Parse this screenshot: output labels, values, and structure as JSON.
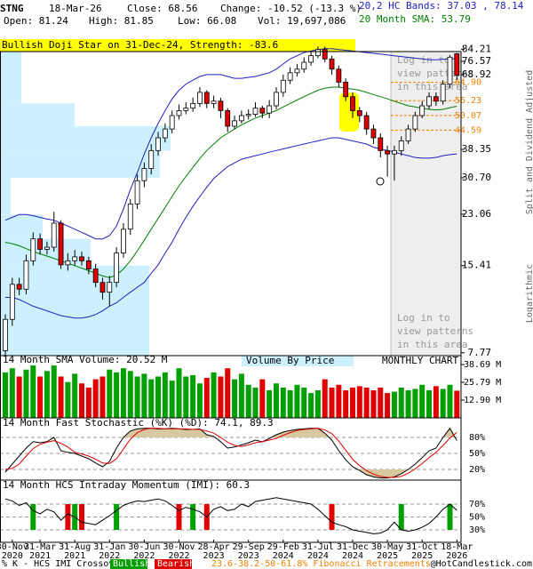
{
  "header": {
    "symbol": "STNG",
    "date": "18-Mar-26",
    "close": "Close: 68.56",
    "change": "Change: -10.52 (-13.3 %)",
    "bands": "20,2 HC Bands: 37.03 , 78.14",
    "open": "Open: 81.24",
    "high": "High: 81.85",
    "low": "Low: 66.08",
    "volume": "Vol: 19,697,086",
    "sma": "20 Month SMA: 53.79",
    "bands_color": "#2020c0",
    "sma_color": "#008000"
  },
  "footer": {
    "credit": "@HotCandlestick.com"
  },
  "chart_data": [
    {
      "type": "candlestick",
      "annotation": "Bullish Doji Star on 31-Dec-24, Strength: -83.6",
      "period": "MONTHLY CHART",
      "y_axis_notes": [
        "Split and Dividend Adjusted",
        "Logarithmic"
      ],
      "pattern_notice": [
        "Log in to",
        "view patterns",
        "in this area"
      ],
      "categories": [
        null,
        "30-Nov",
        null,
        null,
        null,
        "31-Mar",
        null,
        null,
        null,
        null,
        "31-Aug",
        null,
        null,
        null,
        null,
        "31-Jan",
        null,
        null,
        null,
        null,
        "30-Jun",
        null,
        null,
        null,
        null,
        "30-Nov",
        null,
        null,
        null,
        null,
        "28-Apr",
        null,
        null,
        null,
        null,
        "29-Sep",
        null,
        null,
        null,
        null,
        "29-Feb",
        null,
        null,
        null,
        null,
        "31-Jul",
        null,
        null,
        null,
        null,
        "31-Dec",
        null,
        null,
        null,
        null,
        "30-May",
        null,
        null,
        null,
        null,
        "31-Oct",
        null,
        null,
        null,
        null,
        "18-Mar"
      ],
      "category_years": [
        null,
        "2020",
        null,
        null,
        null,
        "2021",
        null,
        null,
        null,
        null,
        "2021",
        null,
        null,
        null,
        null,
        "2022",
        null,
        null,
        null,
        null,
        "2022",
        null,
        null,
        null,
        null,
        "2022",
        null,
        null,
        null,
        null,
        "2023",
        null,
        null,
        null,
        null,
        "2023",
        null,
        null,
        null,
        null,
        "2024",
        null,
        null,
        null,
        null,
        "2024",
        null,
        null,
        null,
        null,
        "2024",
        null,
        null,
        null,
        null,
        "2025",
        null,
        null,
        null,
        null,
        "2025",
        null,
        null,
        null,
        null,
        "2026"
      ],
      "open": [
        7.9,
        10.1,
        13.3,
        12.8,
        16,
        19,
        17.5,
        17.8,
        21.5,
        15.5,
        16,
        16.5,
        16,
        15,
        13.5,
        12.5,
        13.5,
        17,
        20.5,
        25,
        30,
        33,
        38,
        42,
        45,
        50,
        52,
        53,
        55,
        60,
        55,
        56,
        52,
        46,
        48,
        50,
        50.5,
        53,
        51,
        54,
        60,
        66,
        70,
        72,
        76,
        80,
        84,
        78,
        72,
        65,
        58,
        52,
        50,
        45,
        42,
        38,
        37,
        38,
        41,
        45,
        50,
        54,
        58,
        56,
        64,
        81.24
      ],
      "high": [
        10.5,
        14,
        14,
        16.8,
        20,
        19.8,
        18.6,
        23.5,
        22,
        17,
        17.4,
        17.2,
        16.5,
        15.6,
        14,
        14.2,
        17.8,
        21.5,
        26,
        31.5,
        34.6,
        40,
        44,
        47,
        52,
        54.5,
        55.5,
        57.6,
        62.5,
        61,
        58.5,
        57.5,
        53,
        50,
        52,
        52.5,
        55.5,
        54,
        56.5,
        62.5,
        69,
        73,
        75,
        79,
        83,
        86,
        86,
        80,
        74,
        67,
        60,
        53.5,
        51.5,
        46.5,
        43.5,
        39.5,
        39.5,
        42.5,
        46.5,
        51.5,
        56,
        60,
        60,
        66,
        80.5,
        81.85
      ],
      "low": [
        7.6,
        9.6,
        12.2,
        12.3,
        15.4,
        16.8,
        16.8,
        17.2,
        15,
        14.8,
        15.4,
        15.4,
        14.4,
        13,
        11.8,
        11.2,
        13,
        16.4,
        19.6,
        24,
        28.5,
        31.5,
        36.5,
        40.5,
        43.5,
        48.5,
        50.5,
        51.5,
        53.5,
        53,
        53,
        49,
        44,
        45,
        47,
        48.5,
        49.5,
        49,
        49,
        52.5,
        58,
        64,
        68,
        70,
        74,
        78.5,
        76,
        69,
        62.5,
        56,
        49,
        47.5,
        43,
        40,
        36,
        31,
        30,
        36.5,
        40,
        44,
        49,
        52.5,
        54,
        54.5,
        62,
        66.08
      ],
      "close": [
        10.1,
        13.3,
        12.8,
        16,
        19,
        17.5,
        17.8,
        21.5,
        15.5,
        16,
        16.5,
        16,
        15,
        13.5,
        12.5,
        13.5,
        17,
        20.5,
        25,
        30,
        33,
        38,
        42,
        45,
        50,
        52,
        53,
        55,
        60,
        55,
        56,
        52,
        46,
        48,
        50,
        50.5,
        53,
        51,
        54,
        60,
        66,
        70,
        72,
        76,
        80,
        84,
        78,
        72,
        65,
        58,
        52,
        50,
        45,
        42,
        38,
        37,
        38,
        41,
        45,
        50,
        54,
        58,
        56,
        64,
        79.08,
        68.56
      ],
      "colors": {
        "up": "#ffffff",
        "down": "#e00000"
      },
      "sma": {
        "color": "#008000",
        "values": [
          18.5,
          18.3,
          18,
          17.6,
          17.2,
          16.9,
          16.6,
          16.3,
          16,
          15.7,
          15.4,
          15.1,
          14.8,
          14.5,
          14.2,
          14,
          14.3,
          15,
          16,
          17.3,
          18.8,
          20.5,
          22.3,
          24.3,
          26.5,
          28.8,
          31,
          33.3,
          35.7,
          38,
          40,
          42,
          43.5,
          45,
          46.5,
          47.8,
          49,
          50,
          51,
          52,
          53.5,
          55,
          56.5,
          58,
          59.5,
          61,
          62,
          62.5,
          62.5,
          62,
          61.5,
          61,
          60,
          59,
          58,
          57,
          56,
          55,
          54,
          53.5,
          53,
          52.5,
          52.3,
          52.5,
          53.2,
          53.79
        ]
      },
      "bands": {
        "color": "#2020c0",
        "upper": [
          22,
          22.5,
          23,
          23,
          22.8,
          22.5,
          22.2,
          22,
          21.5,
          21,
          20.5,
          20,
          19.5,
          19,
          19,
          19.5,
          21,
          24,
          28,
          32,
          37,
          42,
          47,
          52,
          57,
          61,
          64,
          66,
          68,
          69,
          69,
          69,
          68,
          67,
          67,
          67.5,
          68,
          69,
          70,
          72,
          75,
          78,
          80,
          82,
          83,
          84,
          84.5,
          84.5,
          84,
          83.5,
          83,
          82.5,
          82,
          81.5,
          81,
          80.5,
          80,
          79.5,
          79,
          78.5,
          78,
          77.5,
          77.5,
          77.8,
          78,
          78.14
        ],
        "lower": [
          12,
          12,
          11.8,
          11.5,
          11.2,
          11,
          10.8,
          10.6,
          10.4,
          10.3,
          10.2,
          10.2,
          10.3,
          10.5,
          10.8,
          11.2,
          11.5,
          12,
          12.5,
          13,
          13.5,
          14.5,
          15.5,
          17,
          18.5,
          20.5,
          22.5,
          24.5,
          26.5,
          28.5,
          30.5,
          32,
          33.5,
          34.5,
          35.5,
          36,
          36.5,
          37,
          37.5,
          38,
          38.5,
          39,
          39.5,
          40,
          40.5,
          41,
          41.5,
          42,
          42,
          41.5,
          41,
          40.5,
          40,
          39,
          38.5,
          38,
          37.5,
          37,
          36.5,
          36,
          35.8,
          35.8,
          36,
          36.5,
          36.8,
          37.03
        ]
      },
      "volume_by_price": {
        "label": "Volume By Price",
        "color": "#cdf0ff",
        "bins": [
          7.6,
          12,
          15.4,
          19,
          23,
          30.7,
          38,
          46,
          55,
          88
        ],
        "values": [
          28,
          28,
          17,
          8,
          2,
          30,
          32,
          14,
          4
        ]
      },
      "fibonacci": {
        "label": "23.6-38.2-50-61.8% Fibonacci Retracements",
        "color": "#f08000",
        "levels": [
          {
            "value": 64.9,
            "label": "64.90"
          },
          56.23,
          50.07,
          44.59
        ]
      },
      "log_scale": true,
      "ylim": [
        7.6,
        88
      ],
      "yticks": [
        84.21,
        76.57,
        68.92,
        38.35,
        {
          "value": 30.7,
          "label": "30.70"
        },
        23.06,
        15.41,
        7.77
      ]
    },
    {
      "type": "bar",
      "title": "14 Month SMA Volume: 20.52 M",
      "values": [
        33,
        36,
        30,
        35,
        38,
        30,
        34,
        38,
        30,
        26,
        32,
        25,
        22,
        28,
        30,
        35,
        33,
        36,
        34,
        30,
        32,
        28,
        30,
        33,
        27,
        36,
        30,
        31,
        25,
        29,
        33,
        30,
        36,
        28,
        32,
        24,
        22,
        28,
        20,
        25,
        22,
        20,
        24,
        22,
        18,
        20,
        28,
        22,
        24,
        20,
        22,
        23,
        22,
        20,
        22,
        18,
        19,
        22,
        20,
        21,
        24,
        20,
        23,
        21,
        24,
        19.7
      ],
      "colors": {
        "up": "#00a000",
        "down": "#e00000"
      },
      "ylim": [
        0,
        40
      ],
      "yticks": [
        {
          "value": 38.69,
          "label": "38.69 M"
        },
        {
          "value": 25.79,
          "label": "25.79 M"
        },
        {
          "value": 12.9,
          "label": "12.90 M"
        }
      ]
    },
    {
      "type": "line",
      "title": "14 Month Fast Stochastic (%K) (%D): 74.1, 89.3",
      "shade_color": "#d8c8a0",
      "grid": true,
      "series": [
        {
          "color": "#000000",
          "values": [
            15,
            30,
            45,
            60,
            72,
            70,
            72,
            80,
            55,
            52,
            50,
            45,
            40,
            32,
            25,
            35,
            60,
            80,
            92,
            96,
            97,
            97,
            96,
            96,
            97,
            96,
            95,
            95,
            96,
            85,
            82,
            72,
            60,
            62,
            66,
            70,
            75,
            72,
            78,
            85,
            90,
            93,
            95,
            96,
            97,
            97,
            88,
            75,
            55,
            38,
            25,
            18,
            10,
            6,
            4,
            4,
            6,
            12,
            20,
            30,
            42,
            55,
            60,
            80,
            97,
            74.1
          ]
        },
        {
          "color": "#e00000",
          "values": [
            20,
            22,
            30,
            45,
            59,
            67,
            71,
            74,
            69,
            62,
            52,
            49,
            45,
            39,
            32,
            31,
            40,
            58,
            77,
            89,
            95,
            97,
            97,
            96,
            96,
            96,
            96,
            95,
            95,
            92,
            88,
            80,
            71,
            65,
            63,
            66,
            70,
            72,
            75,
            78,
            84,
            89,
            93,
            95,
            96,
            97,
            94,
            87,
            73,
            56,
            39,
            27,
            18,
            11,
            7,
            5,
            5,
            7,
            13,
            21,
            31,
            42,
            52,
            65,
            79,
            89.3
          ]
        }
      ],
      "ylim": [
        0,
        100
      ],
      "yticks": [
        {
          "value": 80,
          "label": "80%"
        },
        {
          "value": 50,
          "label": "50%"
        },
        {
          "value": 20,
          "label": "20%"
        }
      ]
    },
    {
      "type": "line",
      "title": "14 Month HCS Intraday Momentum (IMI): 60.3",
      "grid": true,
      "series": [
        {
          "color": "#000000",
          "values": [
            78,
            75,
            68,
            72,
            60,
            55,
            62,
            58,
            45,
            55,
            50,
            42,
            40,
            38,
            45,
            52,
            60,
            68,
            72,
            75,
            74,
            76,
            78,
            75,
            68,
            60,
            65,
            62,
            58,
            50,
            62,
            66,
            60,
            62,
            70,
            66,
            74,
            76,
            78,
            80,
            78,
            76,
            74,
            72,
            70,
            62,
            52,
            42,
            38,
            35,
            30,
            28,
            26,
            24,
            25,
            30,
            42,
            30,
            28,
            30,
            34,
            40,
            50,
            62,
            70,
            60.3
          ]
        }
      ],
      "signals": [
        null,
        null,
        null,
        null,
        "Bullish",
        null,
        null,
        null,
        null,
        "Bearish",
        "Bullish",
        "Bearish",
        null,
        null,
        null,
        null,
        "Bullish",
        null,
        null,
        null,
        null,
        null,
        null,
        null,
        null,
        "Bearish",
        null,
        "Bullish",
        null,
        "Bearish",
        null,
        null,
        null,
        null,
        null,
        null,
        null,
        null,
        null,
        null,
        null,
        null,
        null,
        null,
        null,
        null,
        null,
        "Bearish",
        null,
        null,
        null,
        null,
        null,
        null,
        null,
        null,
        null,
        "Bullish",
        null,
        null,
        null,
        null,
        null,
        null,
        "Bullish",
        null
      ],
      "signal_legend": {
        "title": "% K - HCS IMI Crossover:",
        "bullish": "Bullish",
        "bearish": "Bearish"
      },
      "signal_colors": {
        "Bullish": "#00a000",
        "Bearish": "#e00000"
      },
      "ylim": [
        0,
        100
      ],
      "yticks": [
        {
          "value": 70,
          "label": "70%"
        },
        {
          "value": 50,
          "label": "50%"
        },
        {
          "value": 30,
          "label": "30%"
        }
      ]
    }
  ]
}
